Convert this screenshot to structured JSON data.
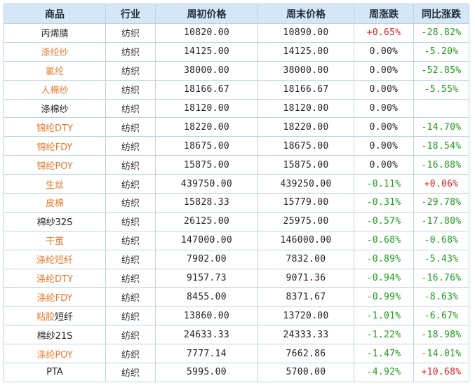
{
  "headers": [
    "商品",
    "行业",
    "周初价格",
    "周末价格",
    "周涨跌",
    "同比涨跌"
  ],
  "colors": {
    "link": "#e87a2e",
    "up": "#e02020",
    "down": "#1c9a1c",
    "header_bg": "#d5e6f6",
    "border": "#bcd3e6"
  },
  "rows": [
    {
      "name_link": "",
      "name_text": "丙烯腈",
      "industry": "纺织",
      "start": "10820.00",
      "end": "10890.00",
      "week_change": "+0.65%",
      "week_dir": "pos",
      "yoy": "-28.82%",
      "yoy_dir": "neg"
    },
    {
      "name_link": "涤纶纱",
      "name_text": "",
      "industry": "纺织",
      "start": "14125.00",
      "end": "14125.00",
      "week_change": "0.00%",
      "week_dir": "flat",
      "yoy": "-5.20%",
      "yoy_dir": "neg"
    },
    {
      "name_link": "氯纶",
      "name_text": "",
      "industry": "纺织",
      "start": "38000.00",
      "end": "38000.00",
      "week_change": "0.00%",
      "week_dir": "flat",
      "yoy": "-52.85%",
      "yoy_dir": "neg"
    },
    {
      "name_link": "人棉纱",
      "name_text": "",
      "industry": "纺织",
      "start": "18166.67",
      "end": "18166.67",
      "week_change": "0.00%",
      "week_dir": "flat",
      "yoy": "-5.55%",
      "yoy_dir": "neg"
    },
    {
      "name_link": "",
      "name_text": "涤棉纱",
      "industry": "纺织",
      "start": "18120.00",
      "end": "18120.00",
      "week_change": "0.00%",
      "week_dir": "flat",
      "yoy": "",
      "yoy_dir": "flat"
    },
    {
      "name_link": "锦纶DTY",
      "name_text": "",
      "industry": "纺织",
      "start": "18220.00",
      "end": "18220.00",
      "week_change": "0.00%",
      "week_dir": "flat",
      "yoy": "-14.70%",
      "yoy_dir": "neg"
    },
    {
      "name_link": "锦纶FDY",
      "name_text": "",
      "industry": "纺织",
      "start": "18675.00",
      "end": "18675.00",
      "week_change": "0.00%",
      "week_dir": "flat",
      "yoy": "-18.54%",
      "yoy_dir": "neg"
    },
    {
      "name_link": "锦纶POY",
      "name_text": "",
      "industry": "纺织",
      "start": "15875.00",
      "end": "15875.00",
      "week_change": "0.00%",
      "week_dir": "flat",
      "yoy": "-16.88%",
      "yoy_dir": "neg"
    },
    {
      "name_link": "生丝",
      "name_text": "",
      "industry": "纺织",
      "start": "439750.00",
      "end": "439250.00",
      "week_change": "-0.11%",
      "week_dir": "neg",
      "yoy": "+0.06%",
      "yoy_dir": "pos"
    },
    {
      "name_link": "皮棉",
      "name_text": "",
      "industry": "纺织",
      "start": "15828.33",
      "end": "15779.00",
      "week_change": "-0.31%",
      "week_dir": "neg",
      "yoy": "-29.78%",
      "yoy_dir": "neg"
    },
    {
      "name_link": "",
      "name_text": "棉纱32S",
      "industry": "纺织",
      "start": "26125.00",
      "end": "25975.00",
      "week_change": "-0.57%",
      "week_dir": "neg",
      "yoy": "-17.80%",
      "yoy_dir": "neg"
    },
    {
      "name_link": "干茧",
      "name_text": "",
      "industry": "纺织",
      "start": "147000.00",
      "end": "146000.00",
      "week_change": "-0.68%",
      "week_dir": "neg",
      "yoy": "-0.68%",
      "yoy_dir": "neg"
    },
    {
      "name_link": "涤纶短纤",
      "name_text": "",
      "industry": "纺织",
      "start": "7902.00",
      "end": "7832.00",
      "week_change": "-0.89%",
      "week_dir": "neg",
      "yoy": "-5.43%",
      "yoy_dir": "neg"
    },
    {
      "name_link": "涤纶DTY",
      "name_text": "",
      "industry": "纺织",
      "start": "9157.73",
      "end": "9071.36",
      "week_change": "-0.94%",
      "week_dir": "neg",
      "yoy": "-16.76%",
      "yoy_dir": "neg"
    },
    {
      "name_link": "涤纶FDY",
      "name_text": "",
      "industry": "纺织",
      "start": "8455.00",
      "end": "8371.67",
      "week_change": "-0.99%",
      "week_dir": "neg",
      "yoy": "-8.63%",
      "yoy_dir": "neg"
    },
    {
      "name_link": "粘胶",
      "name_text": "短纤",
      "industry": "纺织",
      "start": "13860.00",
      "end": "13720.00",
      "week_change": "-1.01%",
      "week_dir": "neg",
      "yoy": "-6.67%",
      "yoy_dir": "neg"
    },
    {
      "name_link": "",
      "name_text": "棉纱21S",
      "industry": "纺织",
      "start": "24633.33",
      "end": "24333.33",
      "week_change": "-1.22%",
      "week_dir": "neg",
      "yoy": "-18.98%",
      "yoy_dir": "neg"
    },
    {
      "name_link": "涤纶POY",
      "name_text": "",
      "industry": "纺织",
      "start": "7777.14",
      "end": "7662.86",
      "week_change": "-1.47%",
      "week_dir": "neg",
      "yoy": "-14.01%",
      "yoy_dir": "neg"
    },
    {
      "name_link": "",
      "name_text": "PTA",
      "industry": "纺织",
      "start": "5995.00",
      "end": "5700.00",
      "week_change": "-4.92%",
      "week_dir": "neg",
      "yoy": "+10.68%",
      "yoy_dir": "pos"
    }
  ]
}
